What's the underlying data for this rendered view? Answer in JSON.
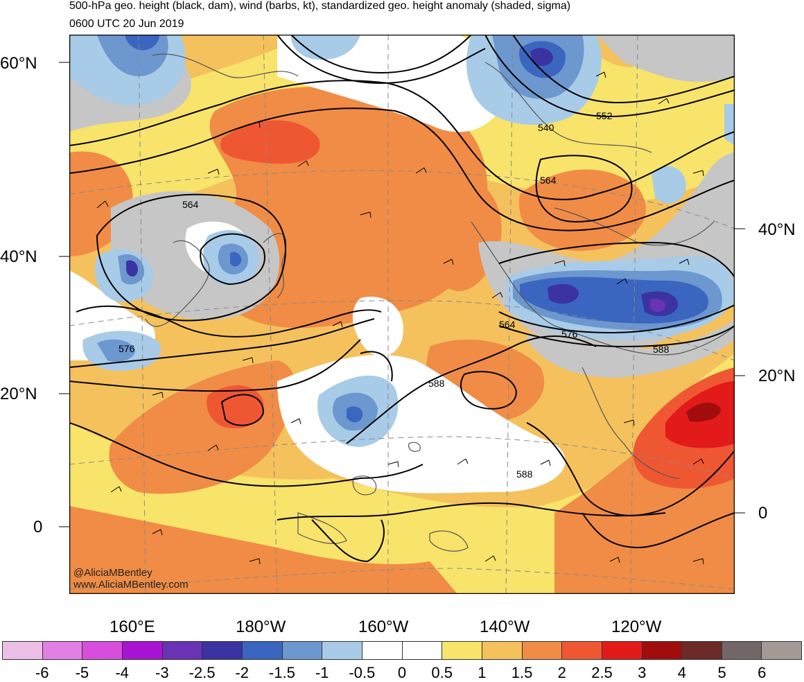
{
  "title": "500-hPa geo. height (black, dam), wind (barbs, kt), standardized geo. height anomaly (shaded, sigma)",
  "valid_time": "0600 UTC 20 Jun 2019",
  "credit": {
    "handle": "@AliciaMBentley",
    "site": "www.AliciaMBentley.com"
  },
  "lat_labels_left": [
    "60°N",
    "40°N",
    "20°N",
    "0"
  ],
  "lat_labels_right": [
    "40°N",
    "20°N",
    "0"
  ],
  "lon_labels": [
    "160°E",
    "180°W",
    "160°W",
    "140°W",
    "120°W"
  ],
  "contour_labels": [
    "564",
    "576",
    "540",
    "552",
    "564",
    "564",
    "576",
    "588",
    "588",
    "588"
  ],
  "colorbar": {
    "colors": [
      "#ecbfe7",
      "#e27fe4",
      "#d74edc",
      "#a813d4",
      "#6a32b4",
      "#3b33a1",
      "#3a66c0",
      "#6c97cf",
      "#a8cbe8",
      "#ffffff",
      "#ffffff",
      "#f8e36b",
      "#f4c15d",
      "#f08c45",
      "#ef5733",
      "#e21a1a",
      "#a10d0d",
      "#6c2b27",
      "#726766",
      "#a59996"
    ],
    "labels": [
      "-6",
      "-5",
      "-4",
      "-3",
      "-2.5",
      "-2",
      "-1.5",
      "-1",
      "-0.5",
      "0",
      "0.5",
      "1",
      "1.5",
      "2",
      "2.5",
      "3",
      "4",
      "5",
      "6"
    ]
  },
  "map_colors": {
    "ocean_white": "#ffffff",
    "yellow": "#f8e36b",
    "light_orange": "#f4c15d",
    "orange": "#f08c45",
    "red_orange": "#ef5733",
    "red": "#e21a1a",
    "dark_red": "#a10d0d",
    "gray": "#c6c6c6",
    "light_blue": "#a8cbe8",
    "blue": "#6c97cf",
    "mid_blue": "#3a66c0",
    "dark_blue": "#3b33a1",
    "purple": "#6a32b4"
  }
}
